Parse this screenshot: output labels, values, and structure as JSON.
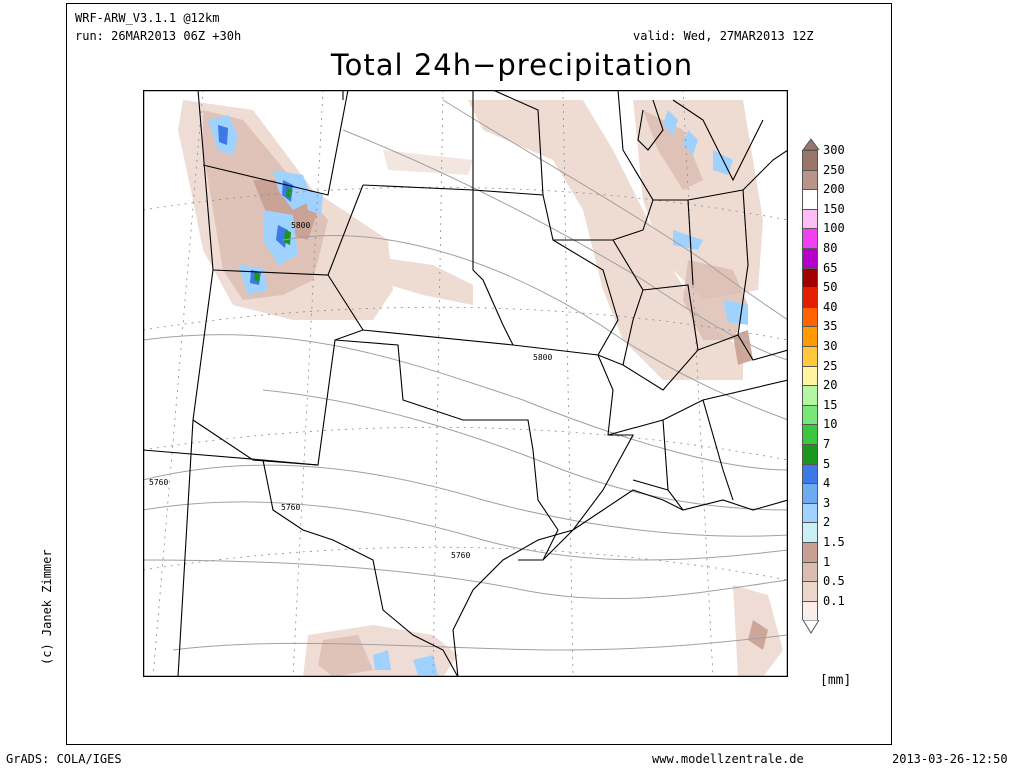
{
  "header": {
    "model": "WRF-ARW_V3.1.1 @12km",
    "run": "run: 26MAR2013 06Z +30h",
    "valid": "valid: Wed, 27MAR2013 12Z",
    "title": "Total 24h−precipitation"
  },
  "map": {
    "region": "Central United States",
    "contour_labels": [
      "5800",
      "5800",
      "5760",
      "5760",
      "5760"
    ]
  },
  "legend": {
    "unit": "[mm]",
    "items": [
      {
        "label": "300",
        "color": "#9b7569"
      },
      {
        "label": "250",
        "color": "#b99488"
      },
      {
        "label": "200",
        "color": "#ffffff"
      },
      {
        "label": "150",
        "color": "#ffbdf6"
      },
      {
        "label": "100",
        "color": "#f040f0"
      },
      {
        "label": "80",
        "color": "#b400c8"
      },
      {
        "label": "65",
        "color": "#a00000"
      },
      {
        "label": "50",
        "color": "#e61e00"
      },
      {
        "label": "40",
        "color": "#ff6400"
      },
      {
        "label": "35",
        "color": "#ff9b00"
      },
      {
        "label": "30",
        "color": "#ffc83c"
      },
      {
        "label": "25",
        "color": "#fff5a0"
      },
      {
        "label": "20",
        "color": "#b4f5a0"
      },
      {
        "label": "15",
        "color": "#78e678"
      },
      {
        "label": "10",
        "color": "#3cc83c"
      },
      {
        "label": "7",
        "color": "#18961e"
      },
      {
        "label": "5",
        "color": "#3c78e6"
      },
      {
        "label": "4",
        "color": "#6eaaf0"
      },
      {
        "label": "3",
        "color": "#a0d2ff"
      },
      {
        "label": "2",
        "color": "#c8f0f5"
      },
      {
        "label": "1.5",
        "color": "#c8a092"
      },
      {
        "label": "1",
        "color": "#dbbcb0"
      },
      {
        "label": "0.5",
        "color": "#ecd6cc"
      },
      {
        "label": "0.1",
        "color": "#f9eeea"
      }
    ]
  },
  "credit": "(c) Janek Zimmer",
  "footer": {
    "left": "GrADS: COLA/IGES",
    "center": "www.modellzentrale.de",
    "right": "2013-03-26-12:50"
  }
}
